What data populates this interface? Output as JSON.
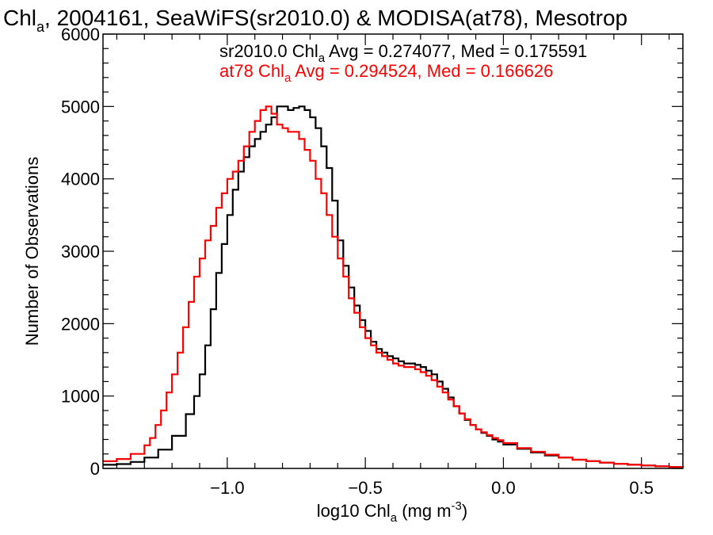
{
  "chart_data": {
    "type": "line",
    "title_main": "Chl",
    "title_sub": "a",
    "title_rest": ", 2004161, SeaWiFS(sr2010.0) & MODISA(at78), Mesotrop",
    "xlabel_main": "log10 Chl",
    "xlabel_sub": "a",
    "xlabel_rest": " (mg m",
    "xlabel_sup": "-3",
    "xlabel_end": ")",
    "ylabel": "Number of Observations",
    "xlim": [
      -1.45,
      0.65
    ],
    "ylim": [
      0,
      6000
    ],
    "x_ticks": [
      -1.0,
      -0.5,
      0.0,
      0.5
    ],
    "x_tick_labels": [
      "−1.0",
      "−0.5",
      "0.0",
      "0.5"
    ],
    "y_ticks": [
      0,
      1000,
      2000,
      3000,
      4000,
      5000,
      6000
    ],
    "y_tick_labels": [
      "0",
      "1000",
      "2000",
      "3000",
      "4000",
      "5000",
      "6000"
    ],
    "legend": [
      {
        "pre": "sr2010.0 Chl",
        "sub": "a",
        "post": " Avg = 0.274077, Med = 0.175591",
        "color": "#000000"
      },
      {
        "pre": "at78 Chl",
        "sub": "a",
        "post": " Avg = 0.294524, Med = 0.166626",
        "color": "#ff0000"
      }
    ],
    "series": [
      {
        "color": "#000000",
        "points": [
          [
            -1.45,
            50
          ],
          [
            -1.4,
            60
          ],
          [
            -1.35,
            90
          ],
          [
            -1.3,
            150
          ],
          [
            -1.25,
            260
          ],
          [
            -1.2,
            450
          ],
          [
            -1.15,
            750
          ],
          [
            -1.12,
            1000
          ],
          [
            -1.1,
            1300
          ],
          [
            -1.08,
            1700
          ],
          [
            -1.06,
            2200
          ],
          [
            -1.04,
            2700
          ],
          [
            -1.02,
            3100
          ],
          [
            -1.0,
            3500
          ],
          [
            -0.98,
            3850
          ],
          [
            -0.96,
            4100
          ],
          [
            -0.94,
            4300
          ],
          [
            -0.92,
            4450
          ],
          [
            -0.9,
            4550
          ],
          [
            -0.88,
            4650
          ],
          [
            -0.86,
            4750
          ],
          [
            -0.84,
            4850
          ],
          [
            -0.82,
            5000
          ],
          [
            -0.8,
            5000
          ],
          [
            -0.78,
            4950
          ],
          [
            -0.76,
            4980
          ],
          [
            -0.74,
            5000
          ],
          [
            -0.72,
            4950
          ],
          [
            -0.7,
            4850
          ],
          [
            -0.68,
            4700
          ],
          [
            -0.66,
            4450
          ],
          [
            -0.64,
            4150
          ],
          [
            -0.62,
            3700
          ],
          [
            -0.6,
            3150
          ],
          [
            -0.58,
            2800
          ],
          [
            -0.56,
            2500
          ],
          [
            -0.54,
            2250
          ],
          [
            -0.52,
            2050
          ],
          [
            -0.5,
            1900
          ],
          [
            -0.48,
            1750
          ],
          [
            -0.46,
            1650
          ],
          [
            -0.44,
            1600
          ],
          [
            -0.42,
            1550
          ],
          [
            -0.4,
            1520
          ],
          [
            -0.38,
            1480
          ],
          [
            -0.36,
            1450
          ],
          [
            -0.34,
            1450
          ],
          [
            -0.32,
            1430
          ],
          [
            -0.3,
            1400
          ],
          [
            -0.28,
            1350
          ],
          [
            -0.26,
            1300
          ],
          [
            -0.24,
            1200
          ],
          [
            -0.22,
            1100
          ],
          [
            -0.2,
            980
          ],
          [
            -0.18,
            860
          ],
          [
            -0.16,
            760
          ],
          [
            -0.14,
            670
          ],
          [
            -0.12,
            600
          ],
          [
            -0.1,
            540
          ],
          [
            -0.08,
            490
          ],
          [
            -0.06,
            450
          ],
          [
            -0.04,
            400
          ],
          [
            -0.02,
            370
          ],
          [
            0.0,
            330
          ],
          [
            0.05,
            270
          ],
          [
            0.1,
            220
          ],
          [
            0.15,
            180
          ],
          [
            0.2,
            150
          ],
          [
            0.25,
            120
          ],
          [
            0.3,
            100
          ],
          [
            0.35,
            80
          ],
          [
            0.4,
            65
          ],
          [
            0.45,
            50
          ],
          [
            0.5,
            40
          ],
          [
            0.55,
            30
          ],
          [
            0.6,
            20
          ],
          [
            0.65,
            15
          ]
        ]
      },
      {
        "color": "#ff0000",
        "points": [
          [
            -1.45,
            100
          ],
          [
            -1.4,
            130
          ],
          [
            -1.35,
            200
          ],
          [
            -1.3,
            320
          ],
          [
            -1.28,
            420
          ],
          [
            -1.26,
            600
          ],
          [
            -1.24,
            800
          ],
          [
            -1.22,
            1050
          ],
          [
            -1.2,
            1300
          ],
          [
            -1.18,
            1600
          ],
          [
            -1.16,
            1950
          ],
          [
            -1.14,
            2300
          ],
          [
            -1.12,
            2650
          ],
          [
            -1.1,
            2900
          ],
          [
            -1.08,
            3150
          ],
          [
            -1.06,
            3350
          ],
          [
            -1.04,
            3600
          ],
          [
            -1.02,
            3800
          ],
          [
            -1.0,
            4000
          ],
          [
            -0.98,
            4100
          ],
          [
            -0.96,
            4250
          ],
          [
            -0.94,
            4450
          ],
          [
            -0.92,
            4650
          ],
          [
            -0.9,
            4800
          ],
          [
            -0.88,
            4950
          ],
          [
            -0.86,
            5000
          ],
          [
            -0.84,
            4900
          ],
          [
            -0.82,
            4750
          ],
          [
            -0.8,
            4700
          ],
          [
            -0.78,
            4650
          ],
          [
            -0.76,
            4650
          ],
          [
            -0.74,
            4550
          ],
          [
            -0.72,
            4400
          ],
          [
            -0.7,
            4250
          ],
          [
            -0.68,
            4000
          ],
          [
            -0.66,
            3800
          ],
          [
            -0.64,
            3500
          ],
          [
            -0.62,
            3200
          ],
          [
            -0.6,
            2900
          ],
          [
            -0.58,
            2650
          ],
          [
            -0.56,
            2350
          ],
          [
            -0.54,
            2150
          ],
          [
            -0.52,
            1950
          ],
          [
            -0.5,
            1800
          ],
          [
            -0.48,
            1700
          ],
          [
            -0.46,
            1600
          ],
          [
            -0.44,
            1550
          ],
          [
            -0.42,
            1500
          ],
          [
            -0.4,
            1450
          ],
          [
            -0.38,
            1420
          ],
          [
            -0.36,
            1400
          ],
          [
            -0.34,
            1400
          ],
          [
            -0.32,
            1370
          ],
          [
            -0.3,
            1330
          ],
          [
            -0.28,
            1280
          ],
          [
            -0.26,
            1220
          ],
          [
            -0.24,
            1130
          ],
          [
            -0.22,
            1050
          ],
          [
            -0.2,
            950
          ],
          [
            -0.18,
            860
          ],
          [
            -0.16,
            760
          ],
          [
            -0.14,
            680
          ],
          [
            -0.12,
            600
          ],
          [
            -0.1,
            540
          ],
          [
            -0.08,
            500
          ],
          [
            -0.06,
            460
          ],
          [
            -0.04,
            420
          ],
          [
            -0.02,
            390
          ],
          [
            0.0,
            350
          ],
          [
            0.05,
            280
          ],
          [
            0.1,
            230
          ],
          [
            0.15,
            190
          ],
          [
            0.2,
            150
          ],
          [
            0.25,
            120
          ],
          [
            0.3,
            100
          ],
          [
            0.35,
            80
          ],
          [
            0.4,
            65
          ],
          [
            0.45,
            50
          ],
          [
            0.5,
            40
          ],
          [
            0.55,
            30
          ],
          [
            0.6,
            20
          ],
          [
            0.65,
            15
          ]
        ]
      }
    ]
  }
}
